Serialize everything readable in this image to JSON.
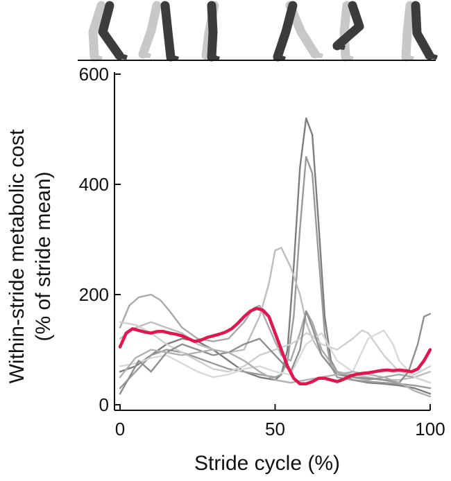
{
  "chart_data": {
    "type": "line",
    "xlabel": "Stride cycle (%)",
    "ylabel_line1": "Within-stride metabolic cost",
    "ylabel_line2": "(% of stride mean)",
    "xlim": [
      0,
      100
    ],
    "ylim": [
      0,
      600
    ],
    "xticks": [
      "0",
      "50",
      "100"
    ],
    "yticks": [
      "0",
      "200",
      "400",
      "600"
    ],
    "grid": false,
    "gait_icons": [
      "gait-phase-1",
      "gait-phase-2",
      "gait-phase-3",
      "gait-phase-4",
      "gait-phase-5",
      "gait-phase-6"
    ],
    "series": [
      {
        "role": "mean",
        "color": "#e0164e",
        "x": [
          0,
          2,
          4,
          6,
          8,
          10,
          12,
          14,
          16,
          18,
          20,
          22,
          24,
          26,
          28,
          30,
          32,
          34,
          36,
          38,
          40,
          42,
          44,
          46,
          48,
          50,
          52,
          54,
          56,
          58,
          60,
          62,
          64,
          66,
          68,
          70,
          72,
          74,
          76,
          78,
          80,
          82,
          84,
          86,
          88,
          90,
          92,
          94,
          96,
          98,
          100
        ],
        "y": [
          105,
          130,
          138,
          135,
          132,
          130,
          133,
          133,
          130,
          128,
          125,
          120,
          115,
          117,
          122,
          125,
          128,
          132,
          138,
          148,
          160,
          170,
          175,
          172,
          160,
          130,
          100,
          70,
          48,
          38,
          38,
          42,
          48,
          48,
          45,
          42,
          46,
          52,
          55,
          57,
          58,
          60,
          62,
          63,
          62,
          63,
          62,
          60,
          65,
          80,
          100
        ]
      },
      {
        "role": "individual",
        "color": "#7d7d7d",
        "x": [
          0,
          5,
          10,
          15,
          20,
          25,
          30,
          35,
          40,
          45,
          50,
          52,
          54,
          56,
          58,
          60,
          62,
          64,
          66,
          68,
          70,
          75,
          80,
          85,
          90,
          95,
          100
        ],
        "y": [
          60,
          70,
          90,
          110,
          120,
          115,
          100,
          80,
          60,
          50,
          45,
          55,
          100,
          250,
          430,
          520,
          490,
          330,
          160,
          80,
          60,
          45,
          40,
          38,
          35,
          30,
          20
        ]
      },
      {
        "role": "individual",
        "color": "#9a9a9a",
        "x": [
          0,
          5,
          10,
          15,
          20,
          25,
          30,
          35,
          40,
          45,
          50,
          52,
          54,
          56,
          58,
          60,
          62,
          64,
          66,
          68,
          70,
          75,
          80,
          85,
          90,
          95,
          100
        ],
        "y": [
          30,
          60,
          90,
          100,
          95,
          85,
          75,
          65,
          60,
          55,
          50,
          55,
          80,
          160,
          320,
          450,
          420,
          270,
          130,
          70,
          50,
          45,
          42,
          40,
          38,
          35,
          30
        ]
      },
      {
        "role": "individual",
        "color": "#bdbdbd",
        "x": [
          0,
          5,
          10,
          15,
          20,
          25,
          30,
          35,
          40,
          45,
          48,
          50,
          52,
          55,
          58,
          60,
          62,
          65,
          68,
          70,
          75,
          80,
          85,
          90,
          95,
          100
        ],
        "y": [
          120,
          140,
          150,
          140,
          130,
          110,
          100,
          95,
          100,
          160,
          220,
          280,
          285,
          250,
          200,
          150,
          120,
          90,
          70,
          60,
          55,
          50,
          45,
          45,
          50,
          60
        ]
      },
      {
        "role": "individual",
        "color": "#a8a8a8",
        "x": [
          0,
          3,
          6,
          10,
          13,
          16,
          20,
          25,
          30,
          35,
          40,
          43,
          45,
          48,
          52,
          55,
          58,
          60,
          62,
          65,
          70,
          75,
          80,
          85,
          90,
          95,
          100
        ],
        "y": [
          140,
          180,
          195,
          200,
          190,
          170,
          140,
          120,
          115,
          120,
          150,
          175,
          180,
          140,
          90,
          80,
          130,
          170,
          150,
          100,
          60,
          50,
          45,
          50,
          55,
          50,
          40
        ]
      },
      {
        "role": "individual",
        "color": "#cfcfcf",
        "x": [
          0,
          5,
          10,
          15,
          20,
          25,
          30,
          35,
          40,
          45,
          50,
          55,
          58,
          60,
          62,
          65,
          70,
          75,
          78,
          80,
          85,
          90,
          95,
          100
        ],
        "y": [
          150,
          145,
          130,
          110,
          95,
          80,
          65,
          60,
          70,
          90,
          100,
          110,
          120,
          130,
          125,
          110,
          100,
          120,
          135,
          130,
          90,
          60,
          55,
          70
        ]
      },
      {
        "role": "individual",
        "color": "#d9d9d9",
        "x": [
          0,
          5,
          10,
          15,
          20,
          25,
          30,
          35,
          40,
          45,
          50,
          55,
          60,
          65,
          70,
          75,
          80,
          85,
          88,
          90,
          95,
          100
        ],
        "y": [
          70,
          75,
          85,
          90,
          75,
          60,
          50,
          55,
          65,
          70,
          60,
          55,
          110,
          130,
          80,
          60,
          120,
          135,
          110,
          80,
          50,
          40
        ]
      },
      {
        "role": "individual",
        "color": "#8f8f8f",
        "x": [
          0,
          3,
          6,
          10,
          15,
          20,
          25,
          30,
          35,
          40,
          45,
          50,
          55,
          58,
          60,
          62,
          65,
          70,
          75,
          80,
          85,
          90,
          93,
          96,
          98,
          100
        ],
        "y": [
          20,
          50,
          80,
          60,
          95,
          110,
          100,
          90,
          95,
          110,
          120,
          90,
          60,
          100,
          170,
          140,
          90,
          55,
          50,
          48,
          45,
          40,
          60,
          110,
          160,
          165
        ]
      },
      {
        "role": "individual",
        "color": "#b0b0b0",
        "x": [
          0,
          5,
          10,
          15,
          20,
          25,
          30,
          35,
          40,
          45,
          50,
          55,
          60,
          65,
          70,
          75,
          80,
          85,
          90,
          95,
          100
        ],
        "y": [
          50,
          85,
          100,
          95,
          90,
          95,
          100,
          95,
          80,
          60,
          45,
          40,
          45,
          50,
          55,
          60,
          55,
          50,
          40,
          25,
          15
        ]
      }
    ]
  }
}
